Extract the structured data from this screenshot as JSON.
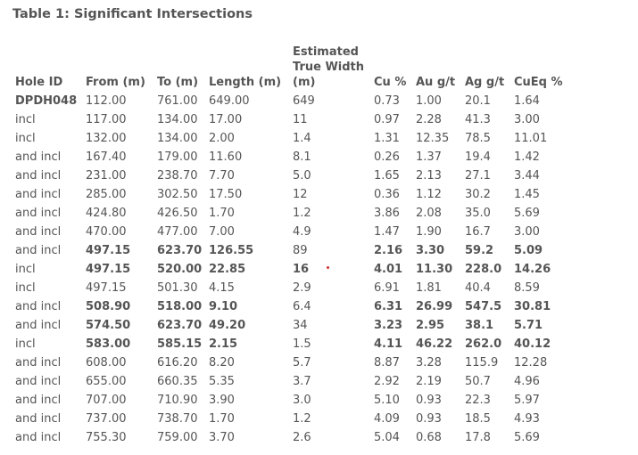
{
  "title": "Table 1: Significant Intersections",
  "table": {
    "headers": [
      "Hole ID",
      "From (m)",
      "To (m)",
      "Length (m)",
      "Estimated True Width (m)",
      "Cu %",
      "Au g/t",
      "Ag g/t",
      "CuEq %"
    ],
    "rows": [
      [
        "DPDH048",
        "112.00",
        "761.00",
        "649.00",
        "649",
        "0.73",
        "1.00",
        "20.1",
        "1.64"
      ],
      [
        "incl",
        "117.00",
        "134.00",
        "17.00",
        "11",
        "0.97",
        "2.28",
        "41.3",
        "3.00"
      ],
      [
        "incl",
        "132.00",
        "134.00",
        "2.00",
        "1.4",
        "1.31",
        "12.35",
        "78.5",
        "11.01"
      ],
      [
        "and incl",
        "167.40",
        "179.00",
        "11.60",
        "8.1",
        "0.26",
        "1.37",
        "19.4",
        "1.42"
      ],
      [
        "and incl",
        "231.00",
        "238.70",
        "7.70",
        "5.0",
        "1.65",
        "2.13",
        "27.1",
        "3.44"
      ],
      [
        "and incl",
        "285.00",
        "302.50",
        "17.50",
        "12",
        "0.36",
        "1.12",
        "30.2",
        "1.45"
      ],
      [
        "and incl",
        "424.80",
        "426.50",
        "1.70",
        "1.2",
        "3.86",
        "2.08",
        "35.0",
        "5.69"
      ],
      [
        "and incl",
        "470.00",
        "477.00",
        "7.00",
        "4.9",
        "1.47",
        "1.90",
        "16.7",
        "3.00"
      ],
      [
        "and incl",
        "497.15",
        "623.70",
        "126.55",
        "89",
        "2.16",
        "3.30",
        "59.2",
        "5.09"
      ],
      [
        "incl",
        "497.15",
        "520.00",
        "22.85",
        "16",
        "4.01",
        "11.30",
        "228.0",
        "14.26"
      ],
      [
        "incl",
        "497.15",
        "501.30",
        "4.15",
        "2.9",
        "6.91",
        "1.81",
        "40.4",
        "8.59"
      ],
      [
        "and incl",
        "508.90",
        "518.00",
        "9.10",
        "6.4",
        "6.31",
        "26.99",
        "547.5",
        "30.81"
      ],
      [
        "and incl",
        "574.50",
        "623.70",
        "49.20",
        "34",
        "3.23",
        "2.95",
        "38.1",
        "5.71"
      ],
      [
        "incl",
        "583.00",
        "585.15",
        "2.15",
        "1.5",
        "4.11",
        "46.22",
        "262.0",
        "40.12"
      ],
      [
        "and incl",
        "608.00",
        "616.20",
        "8.20",
        "5.7",
        "8.87",
        "3.28",
        "115.9",
        "12.28"
      ],
      [
        "and incl",
        "655.00",
        "660.35",
        "5.35",
        "3.7",
        "2.92",
        "2.19",
        "50.7",
        "4.96"
      ],
      [
        "and incl",
        "707.00",
        "710.90",
        "3.90",
        "3.0",
        "5.10",
        "0.93",
        "22.3",
        "5.97"
      ],
      [
        "and incl",
        "737.00",
        "738.70",
        "1.70",
        "1.2",
        "4.09",
        "0.93",
        "18.5",
        "4.93"
      ],
      [
        "and incl",
        "755.30",
        "759.00",
        "3.70",
        "2.6",
        "5.04",
        "0.68",
        "17.8",
        "5.69"
      ]
    ]
  }
}
